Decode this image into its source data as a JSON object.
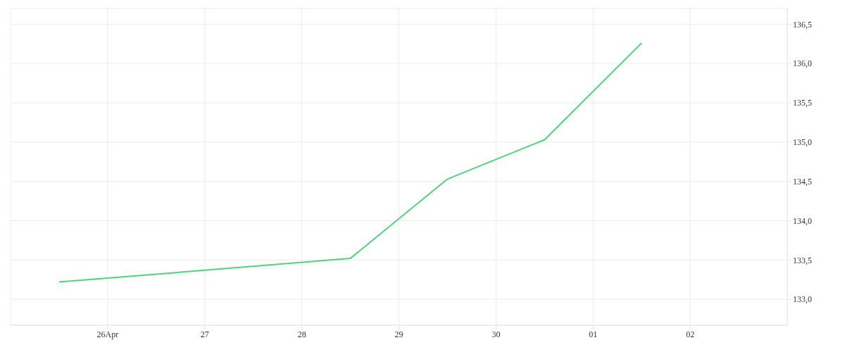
{
  "chart_data": {
    "type": "line",
    "x": [
      "--04-25T12:00",
      "--04-28T12:00",
      "--04-29T12:00",
      "--04-30T12:00",
      "--05-01T12:00"
    ],
    "series": [
      {
        "color": "#4cd47a",
        "values": [
          133.22,
          133.52,
          134.53,
          135.03,
          136.26
        ]
      }
    ],
    "xlim": [
      "--04-25",
      "--05-03"
    ],
    "xticks": [
      {
        "value": "--04-26",
        "label": "26Apr"
      },
      {
        "value": "--04-27",
        "label": "27"
      },
      {
        "value": "--04-28",
        "label": "28"
      },
      {
        "value": "--04-29",
        "label": "29"
      },
      {
        "value": "--04-30",
        "label": "30"
      },
      {
        "value": "--05-01",
        "label": "01"
      },
      {
        "value": "--05-02",
        "label": "02"
      }
    ],
    "ylim": [
      132.67,
      136.7
    ],
    "yticks": [
      {
        "value": 133,
        "label": "133,0"
      },
      {
        "value": 133.5,
        "label": "133,5"
      },
      {
        "value": 134,
        "label": "134,0"
      },
      {
        "value": 134.5,
        "label": "134,5"
      },
      {
        "value": 135,
        "label": "135,0"
      },
      {
        "value": 135.5,
        "label": "135,5"
      },
      {
        "value": 136,
        "label": "136,0"
      },
      {
        "value": 136.5,
        "label": "136,5"
      }
    ],
    "grid": true,
    "legend": false,
    "marker": "none",
    "line_style": "solid"
  }
}
